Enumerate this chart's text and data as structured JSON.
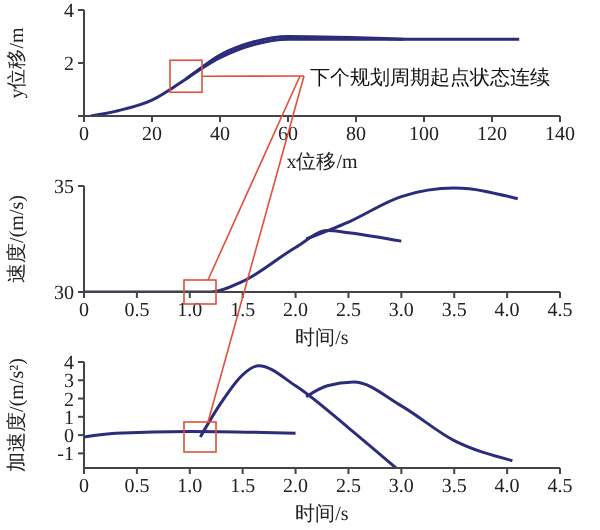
{
  "chart_data": [
    {
      "type": "line",
      "xlabel": "x位移/m",
      "ylabel": "y位移/m",
      "xlim": [
        0,
        140
      ],
      "xticks": [
        0,
        20,
        40,
        60,
        80,
        100,
        120,
        140
      ],
      "ylim": [
        0,
        4
      ],
      "yticks": [
        {
          "value": 0,
          "label": null
        },
        2,
        4
      ],
      "grid": false,
      "legend": false,
      "marker": "none",
      "line_style": "solid",
      "annotations": [
        {
          "text": "下个规划周期起点状态连续",
          "x": 30,
          "y": 1.5
        }
      ],
      "series": [
        {
          "color": "#2b2d7a",
          "x": [
            2,
            10,
            20,
            30,
            40,
            50,
            60,
            94
          ],
          "values": [
            0,
            0.2,
            0.6,
            1.4,
            2.3,
            2.8,
            3.0,
            2.9
          ]
        },
        {
          "color": "#2b2d7a",
          "x": [
            30,
            40,
            50,
            60,
            128
          ],
          "values": [
            1.4,
            2.2,
            2.7,
            2.9,
            2.9
          ]
        }
      ]
    },
    {
      "type": "line",
      "xlabel": "时间/s",
      "ylabel": "速度/(m/s)",
      "xlim": [
        0,
        4.5
      ],
      "xticks": [
        0,
        0.5,
        {
          "value": 1,
          "label": "1.0"
        },
        1.5,
        {
          "value": 2,
          "label": "2.0"
        },
        2.5,
        {
          "value": 3,
          "label": "3.0"
        },
        3.5,
        {
          "value": 4,
          "label": "4.0"
        },
        4.5
      ],
      "ylim": [
        30,
        35
      ],
      "yticks": [
        30,
        35
      ],
      "grid": false,
      "legend": false,
      "marker": "none",
      "line_style": "solid",
      "series": [
        {
          "color": "#2b2d7a",
          "x": [
            0,
            1.2,
            1.5,
            2.0,
            2.3,
            2.5,
            3.0
          ],
          "values": [
            30,
            30,
            30.5,
            32.1,
            32.9,
            32.8,
            32.4
          ]
        },
        {
          "color": "#2b2d7a",
          "x": [
            2.1,
            2.5,
            3.0,
            3.5,
            4.1
          ],
          "values": [
            32.5,
            33.3,
            34.5,
            34.9,
            34.4
          ]
        }
      ]
    },
    {
      "type": "line",
      "xlabel": "时间/s",
      "ylabel": "加速度/(m/s²)",
      "xlim": [
        0,
        4.5
      ],
      "xticks": [
        0,
        0.5,
        {
          "value": 1,
          "label": "1.0"
        },
        1.5,
        {
          "value": 2,
          "label": "2.0"
        },
        2.5,
        {
          "value": 3,
          "label": "3.0"
        },
        3.5,
        {
          "value": 4,
          "label": "4.0"
        },
        4.5
      ],
      "ylim": [
        -1.8,
        4
      ],
      "yticks": [
        -1,
        0,
        1,
        2,
        3,
        4
      ],
      "grid": false,
      "legend": false,
      "marker": "none",
      "line_style": "solid",
      "series": [
        {
          "color": "#2b2d7a",
          "x": [
            0,
            0.3,
            1.0,
            2.0
          ],
          "values": [
            -0.1,
            0.1,
            0.2,
            0.1
          ]
        },
        {
          "color": "#2b2d7a",
          "x": [
            1.1,
            1.3,
            1.5,
            1.65,
            2.0,
            2.5,
            2.95
          ],
          "values": [
            -0.1,
            1.8,
            3.3,
            3.8,
            2.7,
            0.4,
            -1.8
          ]
        },
        {
          "color": "#2b2d7a",
          "x": [
            2.1,
            2.3,
            2.55,
            3.0,
            3.5,
            4.05
          ],
          "values": [
            2.1,
            2.7,
            2.9,
            1.6,
            -0.3,
            -1.4
          ]
        }
      ]
    }
  ]
}
